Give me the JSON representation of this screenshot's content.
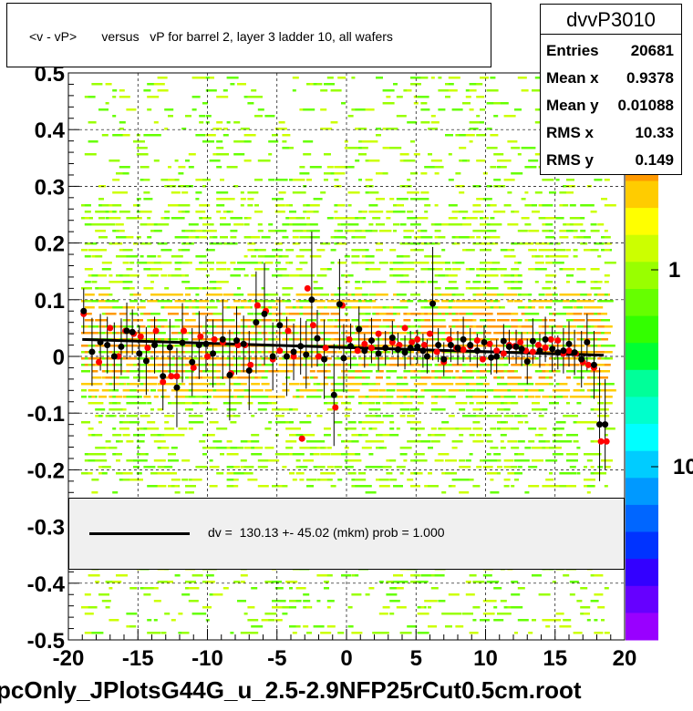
{
  "title": "<v - vP>       versus   vP for barrel 2, layer 3 ladder 10, all wafers",
  "stats": {
    "name": "dvvP3010",
    "rows": [
      {
        "label": "Entries",
        "value": "20681"
      },
      {
        "label": "Mean x",
        "value": "0.9378"
      },
      {
        "label": "Mean y",
        "value": "0.01088"
      },
      {
        "label": "RMS x",
        "value": "10.33"
      },
      {
        "label": "RMS y",
        "value": "0.149"
      }
    ]
  },
  "legend": {
    "text": "dv =  130.13 +- 45.02 (mkm) prob = 1.000"
  },
  "footer": "pcOnly_JPlotsG44G_u_2.5-2.9NFP25rCut0.5cm.root",
  "colors": {
    "fit_line": "#000000",
    "mean_marker": "#000000",
    "sigma_marker": "#ff0000",
    "legend_bg": "#f0f0f0"
  },
  "chart_data": {
    "type": "heatmap",
    "x_ticks": [
      "-20",
      "-15",
      "-10",
      "-5",
      "0",
      "5",
      "10",
      "15",
      "20"
    ],
    "y_ticks": [
      "-0.5",
      "-0.4",
      "-0.3",
      "-0.2",
      "-0.1",
      "0",
      "0.1",
      "0.2",
      "0.3",
      "0.4",
      "0.5"
    ],
    "colorbar_labels": [
      "1",
      "10"
    ],
    "xlim": [
      -20,
      20
    ],
    "ylim": [
      -0.5,
      0.5
    ],
    "grid": true,
    "fit_line": {
      "x": [
        -19,
        18.5
      ],
      "y": [
        0.03,
        0.002
      ]
    },
    "points_black": {
      "x": [
        -18.9,
        -18.3,
        -17.7,
        -17.2,
        -16.7,
        -16.2,
        -15.8,
        -15.4,
        -14.9,
        -14.4,
        -13.8,
        -13.2,
        -12.7,
        -12.2,
        -11.8,
        -11.1,
        -10.6,
        -10.1,
        -9.6,
        -8.9,
        -8.4,
        -7.9,
        -7.4,
        -7.0,
        -6.5,
        -5.9,
        -5.3,
        -4.8,
        -4.3,
        -3.8,
        -3.3,
        -2.9,
        -2.5,
        -2.1,
        -1.6,
        -0.9,
        -0.5,
        -0.2,
        0.3,
        0.9,
        1.3,
        1.8,
        2.3,
        2.8,
        3.3,
        3.7,
        4.2,
        4.6,
        5.1,
        5.5,
        5.8,
        6.2,
        6.6,
        7.0,
        7.5,
        8.0,
        8.4,
        8.9,
        9.4,
        9.9,
        10.4,
        10.8,
        11.3,
        11.7,
        12.2,
        12.6,
        13.0,
        13.4,
        13.9,
        14.3,
        14.8,
        15.2,
        15.6,
        16.0,
        16.4,
        16.9,
        17.3,
        17.8,
        18.2,
        18.6
      ],
      "y": [
        0.08,
        0.008,
        0.025,
        0.02,
        0.0,
        0.017,
        0.045,
        0.043,
        0.005,
        -0.008,
        0.02,
        -0.035,
        0.016,
        -0.055,
        0.024,
        -0.01,
        0.02,
        0.022,
        0.005,
        0.03,
        -0.033,
        0.028,
        0.022,
        -0.025,
        0.06,
        0.075,
        0.0,
        0.055,
        0.0,
        0.008,
        0.018,
        0.003,
        0.1,
        0.032,
        -0.005,
        -0.068,
        0.092,
        -0.003,
        0.018,
        0.048,
        0.01,
        0.028,
        0.005,
        0.015,
        0.033,
        0.012,
        0.007,
        0.015,
        0.017,
        0.01,
        0.0,
        0.093,
        0.02,
        -0.005,
        0.02,
        0.015,
        0.03,
        0.02,
        0.01,
        0.025,
        -0.002,
        0.0,
        0.027,
        0.017,
        0.017,
        0.013,
        -0.009,
        0.027,
        0.01,
        0.03,
        0.013,
        0.007,
        0.01,
        0.022,
        0.007,
        -0.005,
        0.025,
        -0.015,
        -0.12,
        -0.12
      ],
      "err": [
        0.04,
        0.06,
        0.05,
        0.05,
        0.06,
        0.05,
        0.05,
        0.04,
        0.05,
        0.06,
        0.05,
        0.06,
        0.05,
        0.07,
        0.07,
        0.06,
        0.06,
        0.05,
        0.06,
        0.07,
        0.08,
        0.06,
        0.05,
        0.07,
        0.09,
        0.09,
        0.06,
        0.05,
        0.07,
        0.05,
        0.05,
        0.06,
        0.12,
        0.05,
        0.07,
        0.09,
        0.08,
        0.06,
        0.04,
        0.04,
        0.03,
        0.04,
        0.03,
        0.03,
        0.03,
        0.03,
        0.03,
        0.03,
        0.03,
        0.03,
        0.03,
        0.1,
        0.03,
        0.03,
        0.03,
        0.03,
        0.04,
        0.03,
        0.03,
        0.03,
        0.03,
        0.03,
        0.03,
        0.03,
        0.03,
        0.03,
        0.04,
        0.04,
        0.03,
        0.04,
        0.04,
        0.03,
        0.04,
        0.04,
        0.04,
        0.05,
        0.05,
        0.06,
        0.1,
        0.08
      ]
    },
    "points_red": {
      "x": [
        -18.9,
        -17.8,
        -17.0,
        -16.4,
        -15.9,
        -15.3,
        -14.8,
        -14.3,
        -13.7,
        -13.2,
        -12.6,
        -12.2,
        -11.7,
        -11.0,
        -10.5,
        -10.0,
        -9.5,
        -8.9,
        -8.3,
        -7.8,
        -7.3,
        -6.9,
        -6.4,
        -5.8,
        -5.3,
        -4.8,
        -4.2,
        -3.8,
        -3.2,
        -2.8,
        -2.4,
        -2.0,
        -1.5,
        -0.8,
        -0.3,
        0.2,
        0.8,
        1.3,
        1.8,
        2.3,
        2.8,
        3.3,
        3.8,
        4.2,
        4.7,
        5.1,
        5.6,
        6.0,
        6.5,
        7.0,
        7.4,
        7.9,
        8.4,
        8.9,
        9.4,
        9.8,
        10.3,
        10.8,
        11.3,
        11.7,
        12.1,
        12.5,
        12.9,
        13.4,
        13.8,
        14.3,
        14.7,
        15.2,
        15.6,
        16.0,
        16.5,
        17.0,
        17.4,
        17.8,
        18.3,
        18.7
      ],
      "y": [
        0.075,
        -0.01,
        0.05,
        0.0,
        0.045,
        0.04,
        0.035,
        0.015,
        0.045,
        -0.045,
        -0.035,
        -0.035,
        0.045,
        -0.02,
        0.035,
        0.0,
        0.03,
        0.025,
        -0.03,
        0.02,
        0.02,
        -0.015,
        0.09,
        0.08,
        -0.005,
        0.01,
        0.045,
        0.0,
        -0.145,
        0.12,
        0.055,
        0.0,
        0.015,
        -0.09,
        0.09,
        0.03,
        0.01,
        0.022,
        0.015,
        0.04,
        0.015,
        0.025,
        0.02,
        0.05,
        0.025,
        0.03,
        0.02,
        0.04,
        0.008,
        -0.01,
        0.03,
        0.015,
        0.012,
        0.018,
        0.028,
        -0.005,
        0.022,
        0.01,
        0.005,
        0.02,
        0.018,
        0.025,
        0.01,
        0.008,
        0.02,
        0.015,
        0.03,
        0.028,
        0.005,
        0.01,
        0.005,
        -0.01,
        -0.015,
        -0.02,
        -0.15,
        -0.15
      ]
    }
  }
}
